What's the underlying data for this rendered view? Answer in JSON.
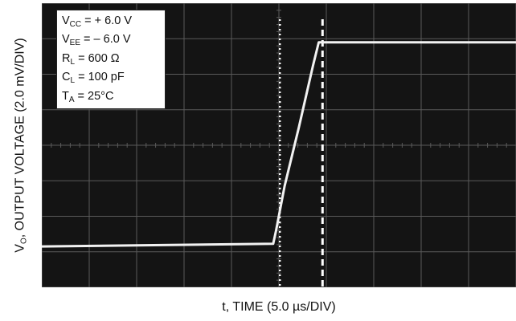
{
  "chart_data": {
    "type": "line",
    "title": "",
    "xlabel": "t, TIME (5.0 µs/DIV)",
    "ylabel": "OUTPUT VOLTAGE (2.0 mV/DIV)",
    "ylabel_symbol": "V",
    "ylabel_symbol_sub": "O",
    "ylabel_sep": ",",
    "x_unit_per_div": "5.0 µs",
    "y_unit_per_div": "2.0 mV",
    "xlim": [
      0,
      50
    ],
    "ylim": [
      0,
      16
    ],
    "grid": true,
    "series": [
      {
        "x": [
          0,
          24.4,
          24.7,
          25.6,
          27.1,
          28.6,
          29.2,
          32.2,
          50
        ],
        "y": [
          2.3,
          2.45,
          3.2,
          5.7,
          9.0,
          12.5,
          13.8,
          13.8,
          13.8
        ]
      }
    ],
    "markers": [
      {
        "style": "dotted",
        "x": 25.1
      },
      {
        "style": "dashed",
        "x": 29.6
      }
    ],
    "conditions": [
      {
        "sym": "V",
        "sub": "CC",
        "val": " = + 6.0 V"
      },
      {
        "sym": "V",
        "sub": "EE",
        "val": " = – 6.0 V"
      },
      {
        "sym": "R",
        "sub": "L",
        "val": " = 600 Ω"
      },
      {
        "sym": "C",
        "sub": "L",
        "val": " = 100 pF"
      },
      {
        "sym": "T",
        "sub": "A",
        "val": " = 25°C"
      }
    ],
    "colors": {
      "screen": "#141414",
      "grid": "#5a5a5a",
      "trace": "#f2f2f2",
      "marker": "#ffffff"
    }
  }
}
